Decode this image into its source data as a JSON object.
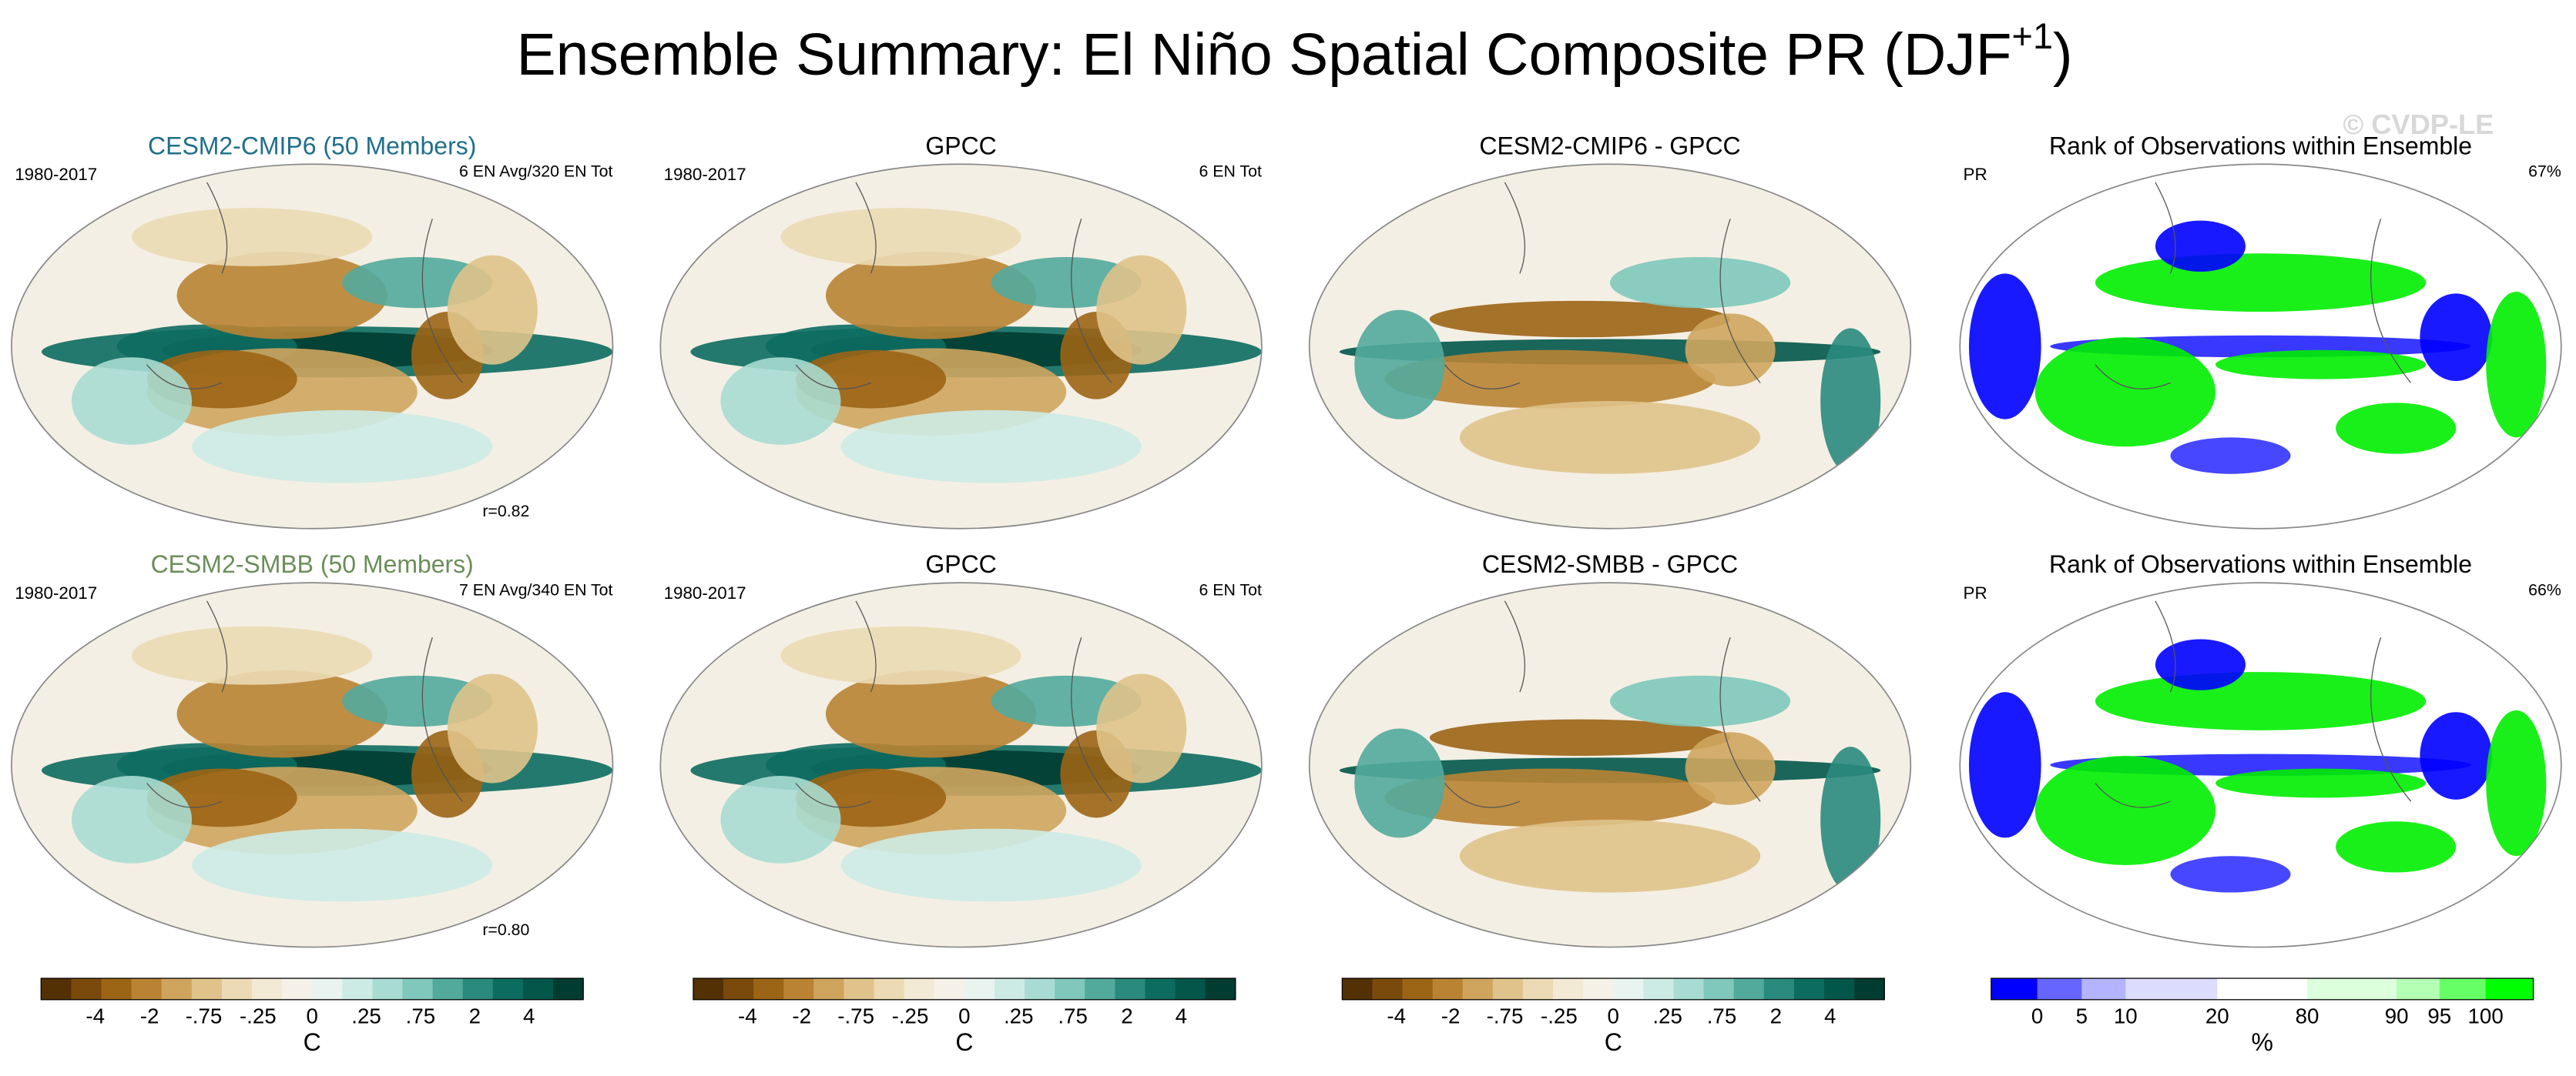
{
  "title_main": "Ensemble Summary: El Niño Spatial Composite PR (DJF",
  "title_sup": "+1",
  "title_end": ")",
  "watermark": "© CVDP-LE",
  "rows": [
    {
      "panels": [
        {
          "kind": "field",
          "title": "CESM2-CMIP6 (50 Members)",
          "title_color": "#1f6f8b",
          "left": "1980-2017",
          "right": "6 EN Avg/320 EN Tot",
          "bottom": "r=0.82"
        },
        {
          "kind": "field",
          "title": "GPCC",
          "left": "1980-2017",
          "right": "6 EN Tot"
        },
        {
          "kind": "diff",
          "title": "CESM2-CMIP6 - GPCC"
        },
        {
          "kind": "rank",
          "title": "Rank of Observations within Ensemble",
          "left": "PR",
          "right": "67%"
        }
      ]
    },
    {
      "panels": [
        {
          "kind": "field",
          "title": "CESM2-SMBB (50 Members)",
          "title_color": "#6b8e5a",
          "left": "1980-2017",
          "right": "7 EN Avg/340 EN Tot",
          "bottom": "r=0.80"
        },
        {
          "kind": "field",
          "title": "GPCC",
          "left": "1980-2017",
          "right": "6 EN Tot"
        },
        {
          "kind": "diff",
          "title": "CESM2-SMBB - GPCC"
        },
        {
          "kind": "rank",
          "title": "Rank of Observations within Ensemble",
          "left": "PR",
          "right": "66%"
        }
      ]
    }
  ],
  "colorbars": [
    {
      "kind": "field",
      "labels": [
        "-4",
        "-2",
        "-.75",
        "-.25",
        "0",
        ".25",
        ".75",
        "2",
        "4"
      ],
      "unit": "C"
    },
    {
      "kind": "field",
      "labels": [
        "-4",
        "-2",
        "-.75",
        "-.25",
        "0",
        ".25",
        ".75",
        "2",
        "4"
      ],
      "unit": "C"
    },
    {
      "kind": "field",
      "labels": [
        "-4",
        "-2",
        "-.75",
        "-.25",
        "0",
        ".25",
        ".75",
        "2",
        "4"
      ],
      "unit": "C"
    },
    {
      "kind": "rank",
      "labels": [
        "0",
        "5",
        "10",
        "20",
        "80",
        "90",
        "95",
        "100"
      ],
      "unit": "%"
    }
  ]
}
